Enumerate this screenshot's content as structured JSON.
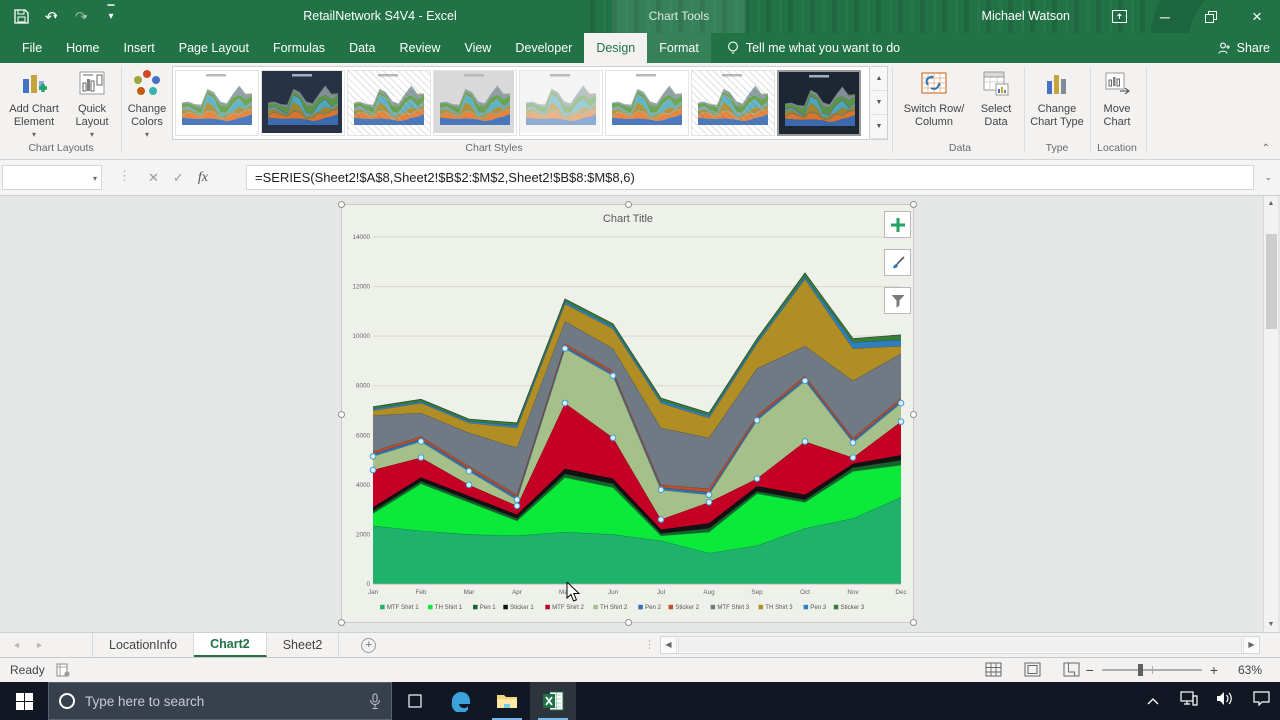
{
  "titlebar": {
    "title": "RetailNetwork S4V4  -  Excel",
    "contextual_label": "Chart Tools",
    "user": "Michael Watson"
  },
  "ribbon": {
    "tabs": [
      "File",
      "Home",
      "Insert",
      "Page Layout",
      "Formulas",
      "Data",
      "Review",
      "View",
      "Developer",
      "Design",
      "Format"
    ],
    "active_tab": "Design",
    "contextual_tabs": [
      "Design",
      "Format"
    ],
    "tell_me": "Tell me what you want to do",
    "share_label": "Share",
    "buttons": {
      "add_chart_element": "Add Chart Element",
      "quick_layout": "Quick Layout",
      "change_colors": "Change Colors",
      "switch_row_column": "Switch Row/ Column",
      "select_data": "Select Data",
      "change_chart_type": "Change Chart Type",
      "move_chart": "Move Chart"
    },
    "groups": {
      "chart_layouts": "Chart Layouts",
      "chart_styles": "Chart Styles",
      "data": "Data",
      "type": "Type",
      "location": "Location"
    },
    "gallery": {
      "styles": [
        {
          "label": "Style 1",
          "theme": "light"
        },
        {
          "label": "Style 2",
          "theme": "dark"
        },
        {
          "label": "Style 3",
          "theme": "hatch"
        },
        {
          "label": "Style 4",
          "theme": "gray"
        },
        {
          "label": "Style 5",
          "theme": "faded"
        },
        {
          "label": "Style 6",
          "theme": "light"
        },
        {
          "label": "Style 7",
          "theme": "hatch"
        },
        {
          "label": "Style 8",
          "theme": "dark2"
        }
      ]
    }
  },
  "formula_bar": {
    "name_box": "",
    "formula": "=SERIES(Sheet2!$A$8,Sheet2!$B$2:$M$2,Sheet2!$B$8:$M$8,6)"
  },
  "chart_data": {
    "type": "area",
    "stacked": true,
    "title": "Chart Title",
    "ylim": [
      0,
      14000
    ],
    "ytick_interval": 2000,
    "grid": true,
    "legend_position": "bottom",
    "selected_series_index": 5,
    "categories": [
      "Jan",
      "Feb",
      "Mar",
      "Apr",
      "May",
      "Jun",
      "Jul",
      "Aug",
      "Sep",
      "Oct",
      "Nov",
      "Dec"
    ],
    "series": [
      {
        "name": "MTF Shirt 1",
        "color": "#1fb26b",
        "values": [
          2350,
          2150,
          2000,
          1950,
          2100,
          2000,
          1750,
          1250,
          1550,
          2250,
          2650,
          3500
        ]
      },
      {
        "name": "TH Shirt 1",
        "color": "#0be93b",
        "values": [
          500,
          1900,
          1300,
          600,
          2200,
          1900,
          200,
          850,
          2100,
          1050,
          1900,
          1300
        ]
      },
      {
        "name": "Pen 1",
        "color": "#17602f",
        "values": [
          100,
          100,
          100,
          100,
          150,
          150,
          100,
          150,
          100,
          100,
          150,
          200
        ]
      },
      {
        "name": "Sticker 1",
        "color": "#121212",
        "values": [
          150,
          150,
          150,
          150,
          200,
          200,
          150,
          200,
          200,
          200,
          150,
          200
        ]
      },
      {
        "name": "MTF Shirt 2",
        "color": "#c40024",
        "values": [
          1500,
          800,
          450,
          350,
          2650,
          1650,
          400,
          850,
          300,
          2150,
          250,
          1350
        ]
      },
      {
        "name": "TH Shirt 2",
        "color": "#a6c08a",
        "values": [
          550,
          650,
          550,
          250,
          2200,
          2500,
          1200,
          300,
          2350,
          2450,
          600,
          750
        ]
      },
      {
        "name": "Pen 2",
        "color": "#2e74b5",
        "values": [
          100,
          100,
          100,
          100,
          100,
          100,
          100,
          100,
          100,
          100,
          100,
          100
        ]
      },
      {
        "name": "Sticker 2",
        "color": "#bf4e2a",
        "values": [
          100,
          100,
          100,
          100,
          100,
          100,
          100,
          150,
          100,
          100,
          100,
          100
        ]
      },
      {
        "name": "MTF Shirt 3",
        "color": "#6f7a85",
        "values": [
          1450,
          950,
          1350,
          1900,
          900,
          900,
          2300,
          2050,
          1900,
          1200,
          2300,
          1800
        ]
      },
      {
        "name": "TH Shirt 3",
        "color": "#b08e23",
        "values": [
          200,
          400,
          400,
          800,
          700,
          800,
          1000,
          800,
          1000,
          2700,
          1300,
          300
        ]
      },
      {
        "name": "Pen 3",
        "color": "#2d7fc0",
        "values": [
          70,
          70,
          70,
          100,
          100,
          100,
          100,
          100,
          100,
          100,
          250,
          250
        ]
      },
      {
        "name": "Sticker 3",
        "color": "#3c7c39",
        "values": [
          80,
          80,
          80,
          100,
          100,
          100,
          100,
          100,
          100,
          150,
          150,
          200
        ]
      }
    ]
  },
  "sheet_strip": {
    "tabs": [
      "LocationInfo",
      "Chart2",
      "Sheet2"
    ],
    "active_tab": "Chart2"
  },
  "status_bar": {
    "mode": "Ready",
    "zoom": "63%"
  },
  "taskbar": {
    "search_placeholder": "Type here to search"
  }
}
